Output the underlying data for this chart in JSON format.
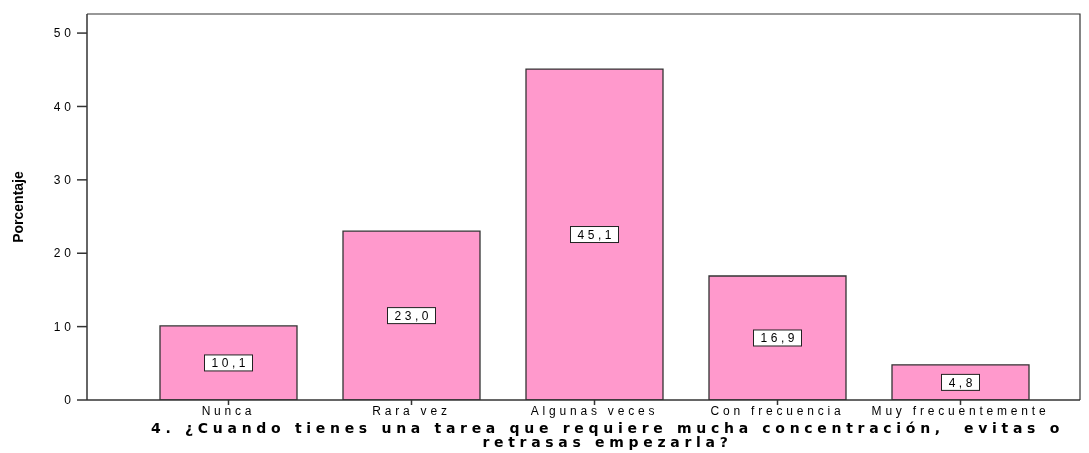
{
  "chart_data": {
    "type": "bar",
    "xlabel": "4. ¿Cuando tienes una tarea que requiere mucha concentración,  evitas o retrasas empezarla?",
    "ylabel": "Porcentaje",
    "categories": [
      "Nunca",
      "Rara vez",
      "Algunas veces",
      "Con frecuencia",
      "Muy frecuentemente"
    ],
    "values": [
      10.1,
      23.0,
      45.1,
      16.9,
      4.8
    ],
    "value_labels": [
      "10,1",
      "23,0",
      "45,1",
      "16,9",
      "4,8"
    ],
    "color": "#ff99cc",
    "ylim": [
      0,
      52.6
    ],
    "yticks": [
      0,
      10,
      20,
      30,
      40,
      50
    ]
  }
}
